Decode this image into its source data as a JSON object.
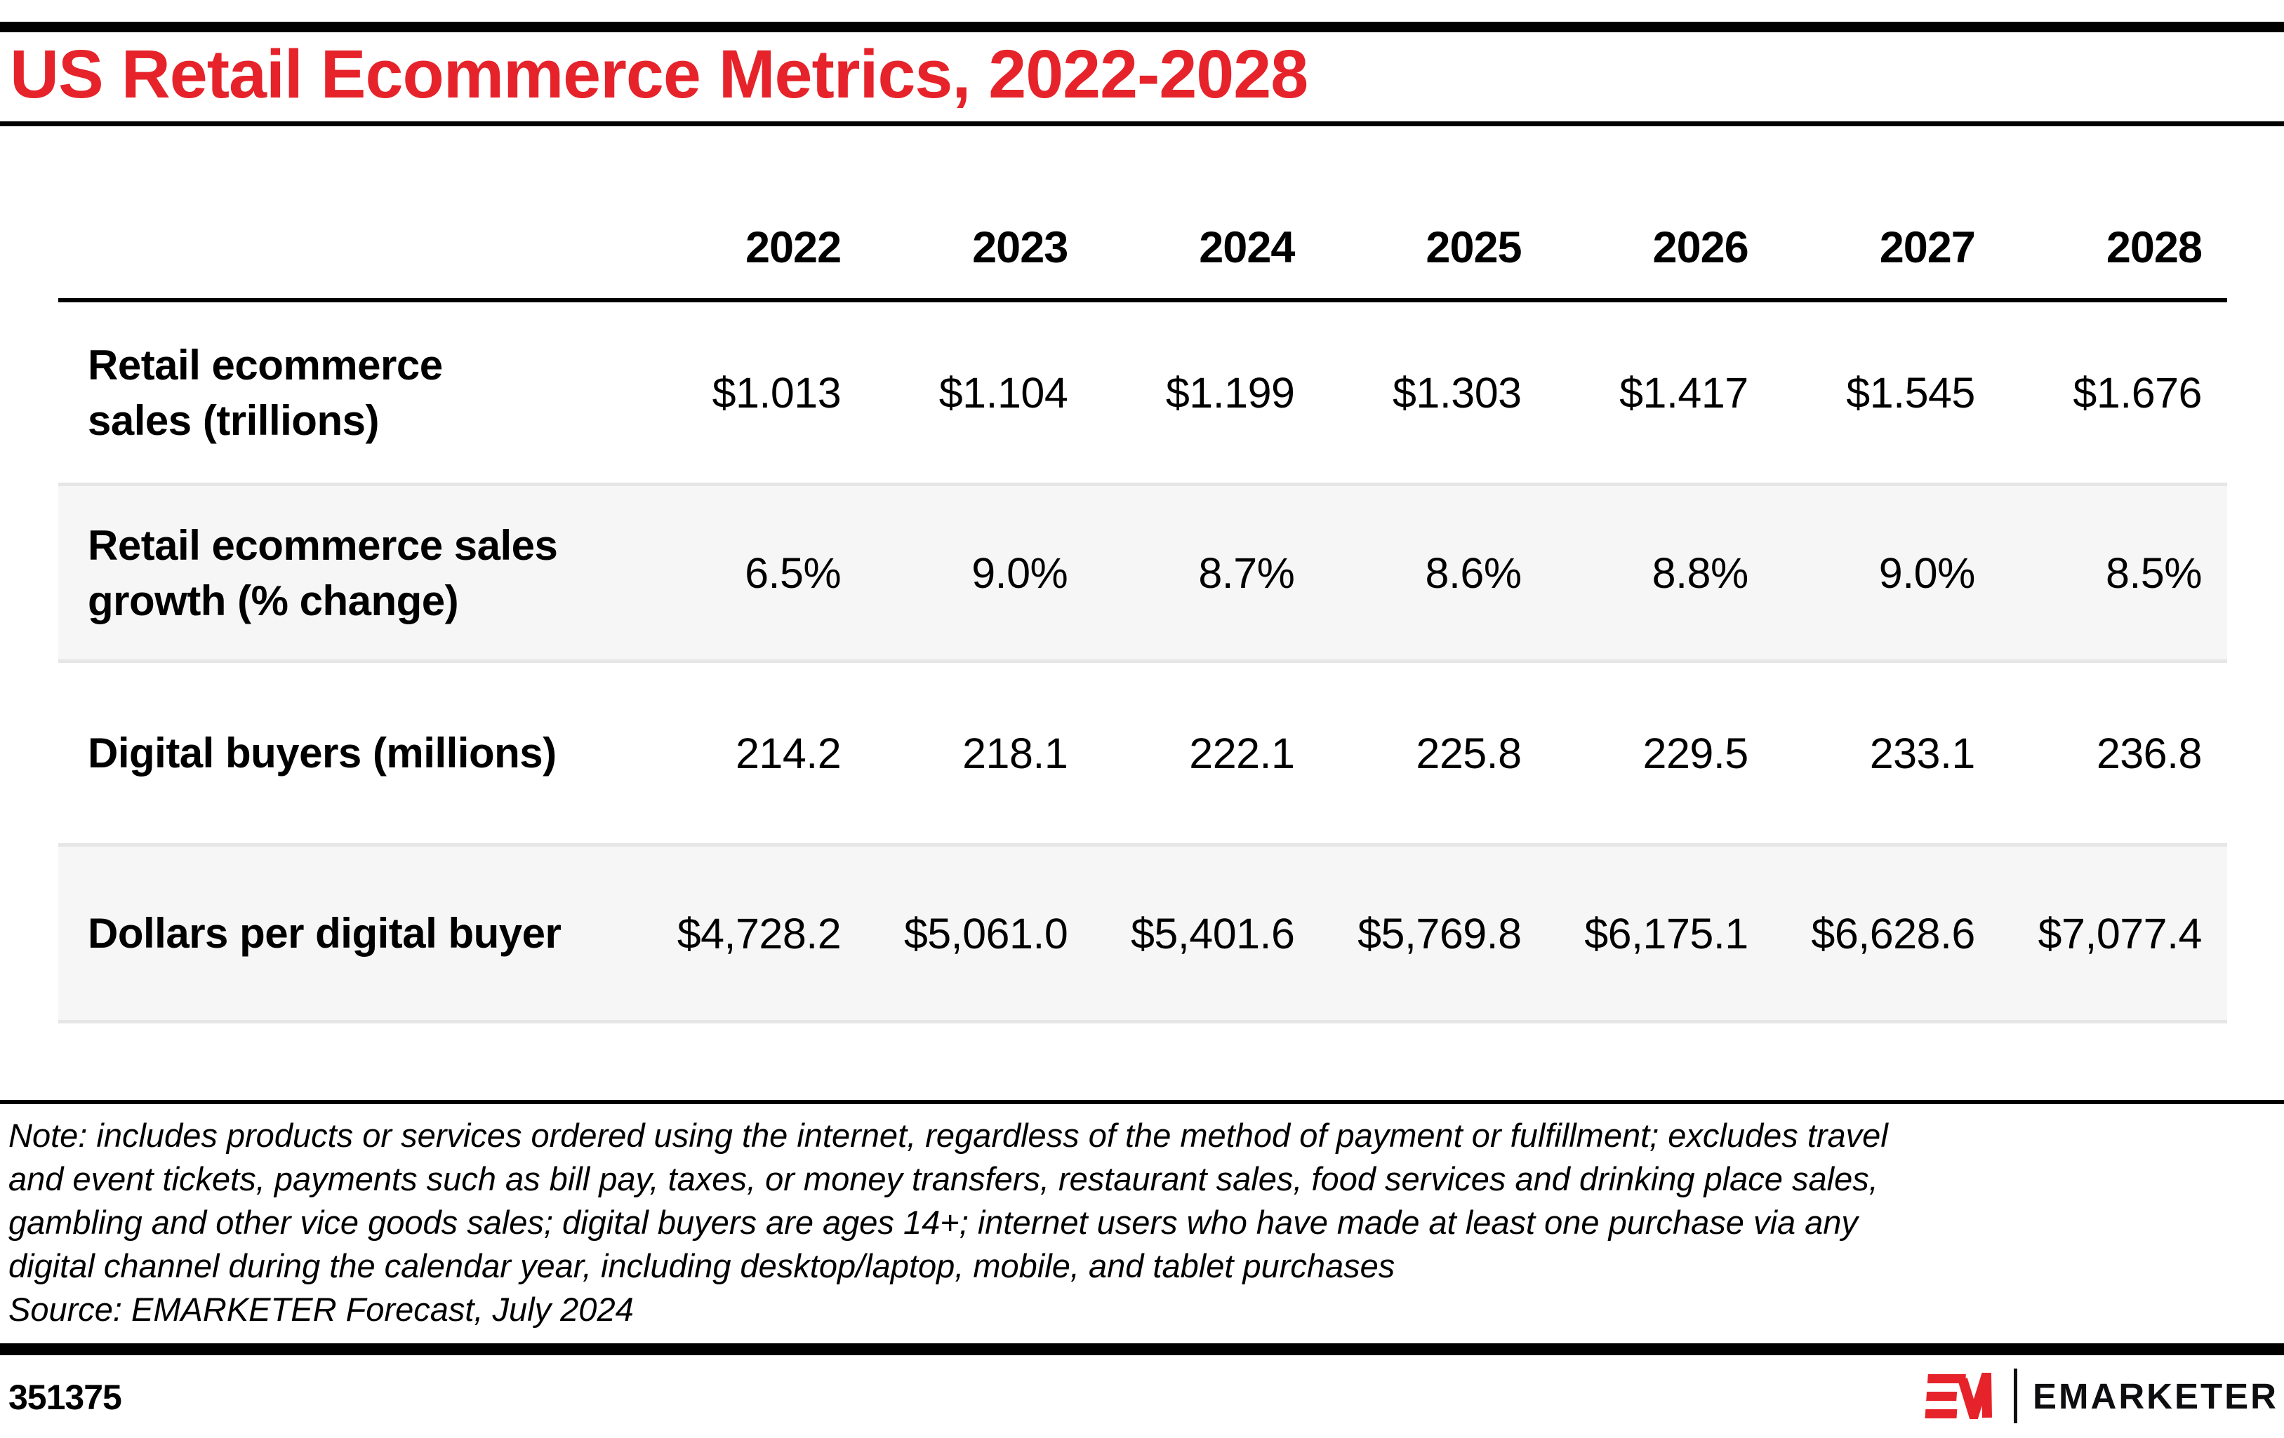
{
  "title": "US Retail Ecommerce Metrics, 2022-2028",
  "table": {
    "years": [
      "2022",
      "2023",
      "2024",
      "2025",
      "2026",
      "2027",
      "2028"
    ],
    "rows": [
      {
        "label_lines": [
          "Retail ecommerce",
          "sales (trillions)"
        ],
        "values": [
          "$1.013",
          "$1.104",
          "$1.199",
          "$1.303",
          "$1.417",
          "$1.545",
          "$1.676"
        ],
        "striped": false
      },
      {
        "label_lines": [
          "Retail ecommerce sales",
          "growth (% change)"
        ],
        "values": [
          "6.5%",
          "9.0%",
          "8.7%",
          "8.6%",
          "8.8%",
          "9.0%",
          "8.5%"
        ],
        "striped": true
      },
      {
        "label_lines": [
          "Digital buyers (millions)"
        ],
        "values": [
          "214.2",
          "218.1",
          "222.1",
          "225.8",
          "229.5",
          "233.1",
          "236.8"
        ],
        "striped": false
      },
      {
        "label_lines": [
          "Dollars per digital buyer"
        ],
        "values": [
          "$4,728.2",
          "$5,061.0",
          "$5,401.6",
          "$5,769.8",
          "$6,175.1",
          "$6,628.6",
          "$7,077.4"
        ],
        "striped": true
      }
    ]
  },
  "note_lines": [
    "Note: includes products or services ordered using the internet, regardless of the method of payment or fulfillment; excludes travel",
    "and event tickets, payments such as bill pay, taxes, or money transfers, restaurant sales, food services and drinking place sales,",
    "gambling and other vice goods sales; digital buyers are ages 14+; internet users who have made at least one purchase via any",
    "digital channel during the calendar year, including desktop/laptop, mobile, and tablet purchases"
  ],
  "source": "Source: EMARKETER Forecast, July 2024",
  "footer": {
    "chart_id": "351375",
    "brand_wordmark": "EMARKETER"
  },
  "colors": {
    "brand_red": "#E6232A",
    "bar_black": "#000000",
    "stripe_bg": "#F6F6F6",
    "stripe_edge": "#E6E6E6"
  },
  "chart_data": {
    "type": "table",
    "title": "US Retail Ecommerce Metrics, 2022-2028",
    "categories": [
      "2022",
      "2023",
      "2024",
      "2025",
      "2026",
      "2027",
      "2028"
    ],
    "series": [
      {
        "name": "Retail ecommerce sales (trillions)",
        "unit": "USD trillions",
        "values": [
          1.013,
          1.104,
          1.199,
          1.303,
          1.417,
          1.545,
          1.676
        ]
      },
      {
        "name": "Retail ecommerce sales growth (% change)",
        "unit": "%",
        "values": [
          6.5,
          9.0,
          8.7,
          8.6,
          8.8,
          9.0,
          8.5
        ]
      },
      {
        "name": "Digital buyers (millions)",
        "unit": "millions",
        "values": [
          214.2,
          218.1,
          222.1,
          225.8,
          229.5,
          233.1,
          236.8
        ]
      },
      {
        "name": "Dollars per digital buyer",
        "unit": "USD",
        "values": [
          4728.2,
          5061.0,
          5401.6,
          5769.8,
          6175.1,
          6628.6,
          7077.4
        ]
      }
    ],
    "note": "Note: includes products or services ordered using the internet, regardless of the method of payment or fulfillment; excludes travel and event tickets, payments such as bill pay, taxes, or money transfers, restaurant sales, food services and drinking place sales, gambling and other vice goods sales; digital buyers are ages 14+; internet users who have made at least one purchase via any digital channel during the calendar year, including desktop/laptop, mobile, and tablet purchases",
    "source": "Source: EMARKETER Forecast, July 2024"
  }
}
